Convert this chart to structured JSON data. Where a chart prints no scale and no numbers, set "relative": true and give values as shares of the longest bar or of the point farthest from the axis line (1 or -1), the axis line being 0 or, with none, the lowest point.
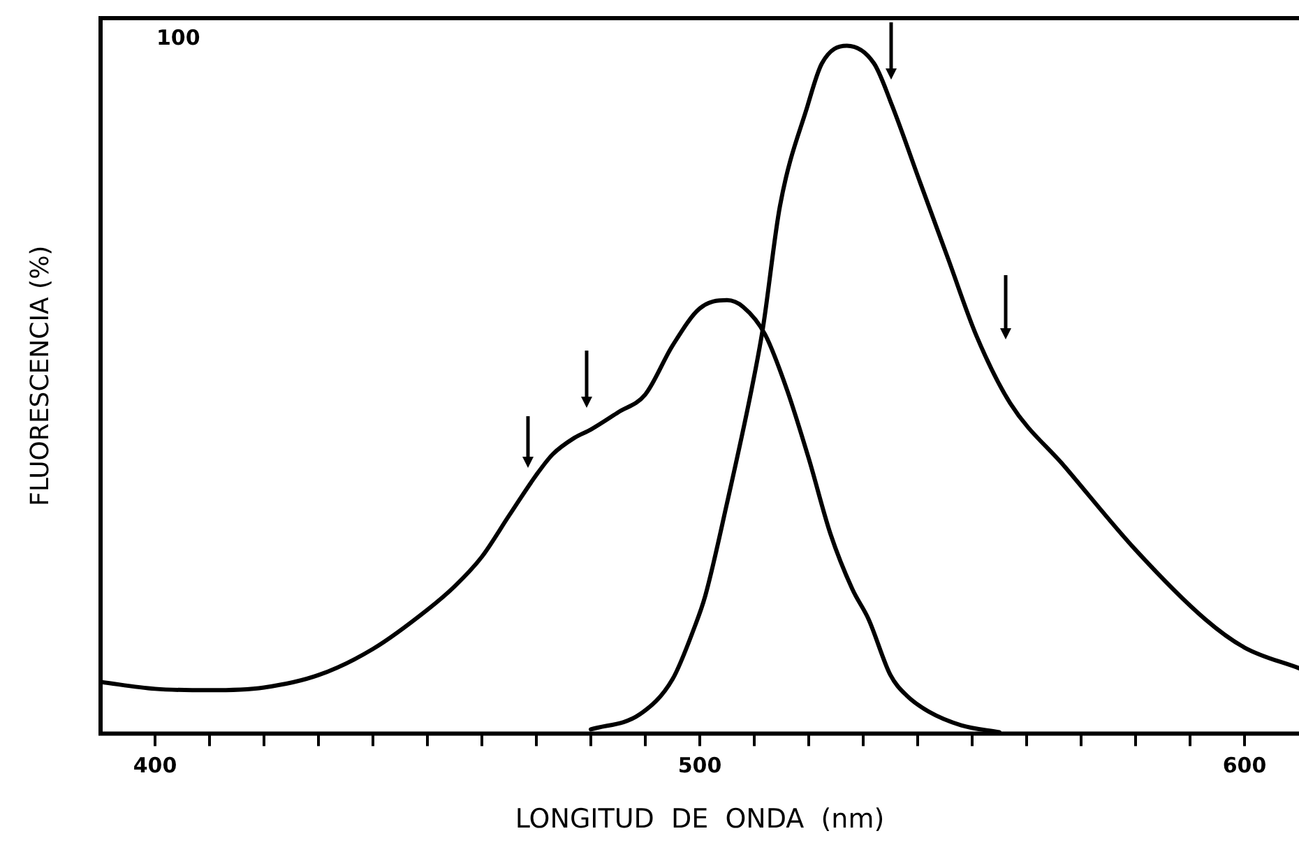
{
  "chart_data": {
    "type": "line",
    "xlabel": "LONGITUD  DE  ONDA  (nm)",
    "ylabel": "FLUORESCENCIA (%)",
    "annotations": [
      "100"
    ],
    "xlim": [
      390,
      610
    ],
    "xticks": [
      400,
      {
        "value": 410,
        "label": null
      },
      {
        "value": 420,
        "label": null
      },
      {
        "value": 430,
        "label": null
      },
      {
        "value": 440,
        "label": null
      },
      {
        "value": 450,
        "label": null
      },
      {
        "value": 460,
        "label": null
      },
      {
        "value": 470,
        "label": null
      },
      {
        "value": 480,
        "label": null
      },
      {
        "value": 490,
        "label": null
      },
      500,
      {
        "value": 510,
        "label": null
      },
      {
        "value": 520,
        "label": null
      },
      {
        "value": 530,
        "label": null
      },
      {
        "value": 540,
        "label": null
      },
      {
        "value": 550,
        "label": null
      },
      {
        "value": 560,
        "label": null
      },
      {
        "value": 570,
        "label": null
      },
      {
        "value": 580,
        "label": null
      },
      {
        "value": 590,
        "label": null
      },
      600
    ],
    "relative": true,
    "marker": "none",
    "line_style": "solid",
    "series": [
      {
        "color": "#000000",
        "x": [
          390,
          400,
          410,
          420,
          430,
          440,
          450,
          455,
          460,
          465,
          470,
          473,
          477,
          480,
          485,
          490,
          495,
          500,
          505,
          508,
          512,
          516,
          520,
          524,
          528,
          531,
          535,
          538,
          542,
          548,
          555
        ],
        "values": [
          0.075,
          0.065,
          0.063,
          0.067,
          0.085,
          0.123,
          0.18,
          0.214,
          0.257,
          0.317,
          0.376,
          0.406,
          0.43,
          0.442,
          0.467,
          0.493,
          0.564,
          0.618,
          0.63,
          0.62,
          0.58,
          0.5,
          0.4,
          0.29,
          0.21,
          0.166,
          0.085,
          0.055,
          0.032,
          0.012,
          0.002
        ]
      },
      {
        "color": "#000000",
        "x": [
          480,
          489,
          495,
          499,
          501,
          505,
          509.5,
          511.6,
          514.7,
          519.8,
          522.4,
          527,
          532,
          535.3,
          540.5,
          545.6,
          550.8,
          557,
          567,
          580,
          592.8,
          600,
          610
        ],
        "values": [
          0.006,
          0.028,
          0.079,
          0.154,
          0.2,
          0.335,
          0.5,
          0.59,
          0.766,
          0.913,
          0.974,
          1,
          0.974,
          0.913,
          0.8,
          0.69,
          0.578,
          0.48,
          0.388,
          0.267,
          0.166,
          0.125,
          0.095
        ]
      }
    ]
  }
}
